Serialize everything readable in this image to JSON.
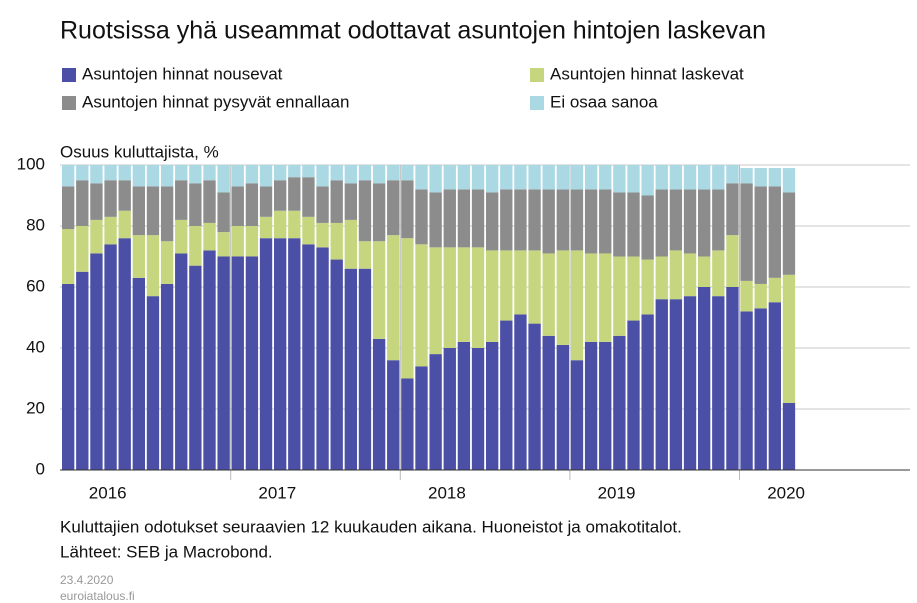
{
  "chart_data": {
    "type": "stacked_bar",
    "title": "Ruotsissa yhä useammat odottavat asuntojen hintojen laskevan",
    "y_axis_label": "Osuus kuluttajista, %",
    "x_labels": [
      "2016",
      "2017",
      "2018",
      "2019",
      "2020"
    ],
    "bars_per_label": 12,
    "slots": 60,
    "categories": [
      null,
      null,
      null,
      null,
      null,
      null,
      null,
      null,
      null,
      null,
      null,
      null,
      null,
      null,
      null,
      null,
      null,
      null,
      null,
      null,
      null,
      null,
      null,
      null,
      null,
      null,
      null,
      null,
      null,
      null,
      null,
      null,
      null,
      null,
      null,
      null,
      null,
      null,
      null,
      null,
      null,
      null,
      null,
      null,
      null,
      null,
      null,
      null,
      null,
      null,
      null,
      null
    ],
    "series": [
      {
        "name": "Asuntojen hinnat nousevat",
        "color": "#4b4fa6",
        "values": [
          61,
          65,
          71,
          74,
          76,
          63,
          57,
          61,
          71,
          67,
          72,
          70,
          70,
          70,
          76,
          76,
          76,
          74,
          73,
          69,
          66,
          66,
          43,
          36,
          30,
          34,
          38,
          40,
          42,
          40,
          42,
          49,
          51,
          48,
          44,
          41,
          36,
          42,
          42,
          44,
          49,
          51,
          56,
          56,
          57,
          60,
          57,
          60,
          52,
          53,
          55,
          22
        ]
      },
      {
        "name": "Asuntojen hinnat laskevat",
        "color": "#c6d67f",
        "values": [
          18,
          15,
          11,
          9,
          9,
          14,
          20,
          14,
          11,
          13,
          9,
          8,
          10,
          10,
          7,
          9,
          9,
          9,
          8,
          12,
          16,
          9,
          32,
          41,
          46,
          40,
          35,
          33,
          31,
          33,
          30,
          23,
          21,
          24,
          27,
          31,
          36,
          29,
          29,
          26,
          21,
          18,
          14,
          16,
          14,
          10,
          15,
          17,
          10,
          8,
          8,
          42
        ]
      },
      {
        "name": "Asuntojen hinnat pysyvät ennallaan",
        "color": "#8c8c8c",
        "values": [
          14,
          15,
          12,
          12,
          10,
          16,
          16,
          18,
          13,
          14,
          14,
          13,
          13,
          14,
          10,
          10,
          11,
          13,
          12,
          14,
          12,
          20,
          19,
          18,
          19,
          18,
          18,
          19,
          19,
          19,
          19,
          20,
          20,
          20,
          21,
          20,
          20,
          21,
          21,
          21,
          21,
          21,
          22,
          20,
          21,
          22,
          20,
          17,
          32,
          32,
          30,
          27
        ]
      },
      {
        "name": "Ei osaa sanoa",
        "color": "#aad8e3",
        "values": [
          7,
          5,
          6,
          5,
          5,
          7,
          7,
          7,
          5,
          6,
          5,
          9,
          7,
          6,
          7,
          5,
          4,
          4,
          7,
          5,
          6,
          5,
          6,
          5,
          5,
          8,
          9,
          8,
          8,
          8,
          9,
          8,
          8,
          8,
          8,
          8,
          8,
          8,
          8,
          9,
          9,
          10,
          8,
          8,
          8,
          8,
          8,
          6,
          5,
          6,
          6,
          8
        ]
      }
    ],
    "ylim": [
      0,
      100
    ],
    "yticks": [
      0,
      20,
      40,
      60,
      80,
      100
    ],
    "grid": true,
    "notes": [
      "Kuluttajien odotukset seuraavien 12 kuukauden aikana. Huoneistot ja omakotitalot.",
      "Lähteet: SEB ja Macrobond."
    ],
    "date": "23.4.2020",
    "site": "euroiatalous.fi"
  }
}
